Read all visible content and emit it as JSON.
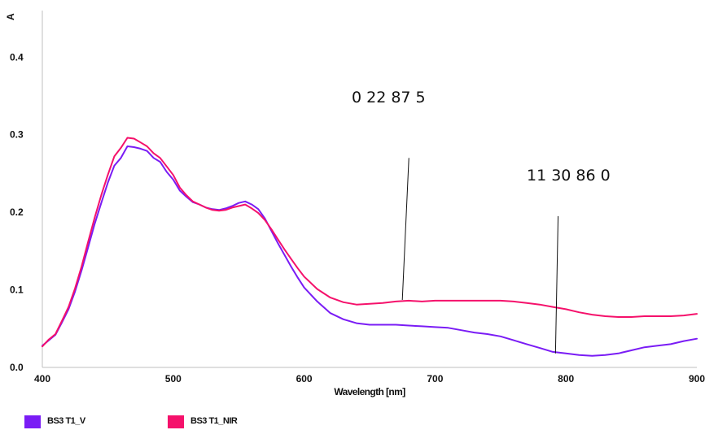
{
  "chart_data": {
    "type": "line",
    "title": "",
    "xlabel": "Wavelength [nm]",
    "ylabel": "A",
    "xlim": [
      400,
      900
    ],
    "ylim": [
      0,
      0.45
    ],
    "xticks": [
      400,
      500,
      600,
      700,
      800,
      900
    ],
    "xtick_labels": [
      "400",
      "500",
      "600",
      "700",
      "800",
      "900"
    ],
    "yticks": [
      0,
      0.1,
      0.2,
      0.3,
      0.4
    ],
    "ytick_labels": [
      "0.0",
      "0.1",
      "0.2",
      "0.3",
      "0.4"
    ],
    "grid": false,
    "legend_placement": "bottom-left",
    "series": [
      {
        "name": "BS3 T1_V",
        "color": "#7a1cf5",
        "x": [
          400,
          405,
          410,
          415,
          420,
          425,
          430,
          435,
          440,
          445,
          450,
          455,
          460,
          465,
          470,
          475,
          480,
          485,
          490,
          495,
          500,
          505,
          510,
          515,
          520,
          525,
          530,
          535,
          540,
          545,
          550,
          555,
          560,
          565,
          570,
          575,
          580,
          585,
          590,
          595,
          600,
          610,
          620,
          630,
          640,
          650,
          660,
          670,
          680,
          690,
          700,
          710,
          720,
          730,
          740,
          750,
          760,
          770,
          780,
          790,
          800,
          810,
          820,
          830,
          840,
          850,
          860,
          870,
          880,
          890,
          900
        ],
        "y": [
          0.028,
          0.035,
          0.042,
          0.058,
          0.075,
          0.098,
          0.125,
          0.155,
          0.185,
          0.212,
          0.238,
          0.26,
          0.27,
          0.285,
          0.284,
          0.282,
          0.279,
          0.27,
          0.265,
          0.252,
          0.242,
          0.228,
          0.22,
          0.213,
          0.21,
          0.206,
          0.204,
          0.203,
          0.205,
          0.208,
          0.212,
          0.214,
          0.21,
          0.204,
          0.192,
          0.176,
          0.16,
          0.145,
          0.13,
          0.116,
          0.103,
          0.085,
          0.07,
          0.062,
          0.057,
          0.055,
          0.055,
          0.055,
          0.054,
          0.053,
          0.052,
          0.051,
          0.048,
          0.045,
          0.043,
          0.04,
          0.035,
          0.03,
          0.025,
          0.02,
          0.018,
          0.016,
          0.015,
          0.016,
          0.018,
          0.022,
          0.026,
          0.028,
          0.03,
          0.034,
          0.037
        ]
      },
      {
        "name": "BS3 T1_NIR",
        "color": "#f5116b",
        "x": [
          400,
          405,
          410,
          415,
          420,
          425,
          430,
          435,
          440,
          445,
          450,
          455,
          460,
          465,
          470,
          475,
          480,
          485,
          490,
          495,
          500,
          505,
          510,
          515,
          520,
          525,
          530,
          535,
          540,
          545,
          550,
          555,
          560,
          565,
          570,
          575,
          580,
          585,
          590,
          595,
          600,
          610,
          620,
          630,
          640,
          650,
          660,
          670,
          680,
          690,
          700,
          710,
          720,
          730,
          740,
          750,
          760,
          770,
          780,
          790,
          800,
          810,
          820,
          830,
          840,
          850,
          860,
          870,
          880,
          890,
          900
        ],
        "y": [
          0.027,
          0.036,
          0.043,
          0.06,
          0.078,
          0.102,
          0.13,
          0.162,
          0.193,
          0.222,
          0.248,
          0.272,
          0.283,
          0.296,
          0.295,
          0.29,
          0.285,
          0.276,
          0.27,
          0.259,
          0.248,
          0.232,
          0.222,
          0.214,
          0.21,
          0.206,
          0.203,
          0.202,
          0.203,
          0.206,
          0.208,
          0.21,
          0.205,
          0.199,
          0.19,
          0.178,
          0.165,
          0.152,
          0.14,
          0.128,
          0.117,
          0.101,
          0.09,
          0.084,
          0.081,
          0.082,
          0.083,
          0.085,
          0.086,
          0.085,
          0.086,
          0.086,
          0.086,
          0.086,
          0.086,
          0.086,
          0.085,
          0.083,
          0.081,
          0.078,
          0.075,
          0.071,
          0.068,
          0.066,
          0.065,
          0.065,
          0.066,
          0.066,
          0.066,
          0.067,
          0.069
        ]
      }
    ],
    "annotations": [
      {
        "text": "0   22   87  5",
        "from": [
          675,
          0.087
        ],
        "to": [
          680,
          0.27
        ]
      },
      {
        "text": "11   30   86   0",
        "from": [
          792,
          0.018
        ],
        "to": [
          794,
          0.195
        ]
      }
    ]
  }
}
